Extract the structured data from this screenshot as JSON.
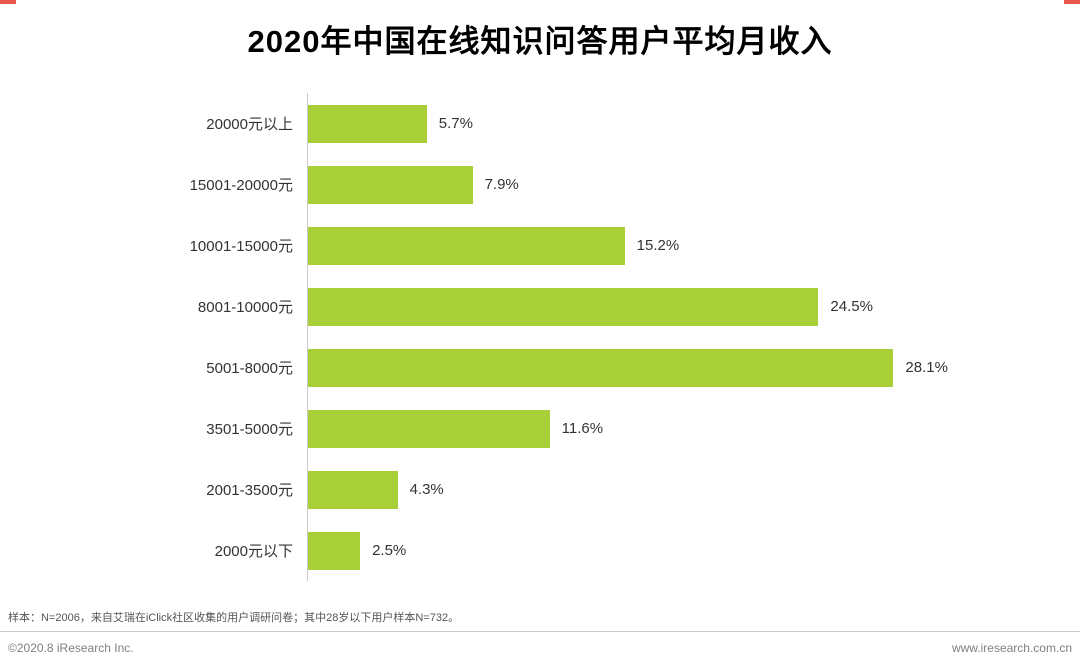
{
  "title": "2020年中国在线知识问答用户平均月收入",
  "chart_data": {
    "type": "bar",
    "orientation": "horizontal",
    "title": "2020年中国在线知识问答用户平均月收入",
    "categories": [
      "20000元以上",
      "15001-20000元",
      "10001-15000元",
      "8001-10000元",
      "5001-8000元",
      "3501-5000元",
      "2001-3500元",
      "2000元以下"
    ],
    "values": [
      5.7,
      7.9,
      15.2,
      24.5,
      28.1,
      11.6,
      4.3,
      2.5
    ],
    "value_labels": [
      "5.7%",
      "7.9%",
      "15.2%",
      "24.5%",
      "28.1%",
      "11.6%",
      "4.3%",
      "2.5%"
    ],
    "xlim": [
      0,
      30
    ],
    "bar_color": "#a9cf38",
    "axis_color": "#c9c9c9",
    "legend": "none",
    "grid": "off"
  },
  "footer": {
    "note": "样本：N=2006，来自艾瑞在iClick社区收集的用户调研问卷；其中28岁以下用户样本N=732。",
    "copyright": "©2020.8 iResearch Inc.",
    "website": "www.iresearch.com.cn"
  },
  "accents": {
    "corner_mark_color": "#e8574b"
  }
}
